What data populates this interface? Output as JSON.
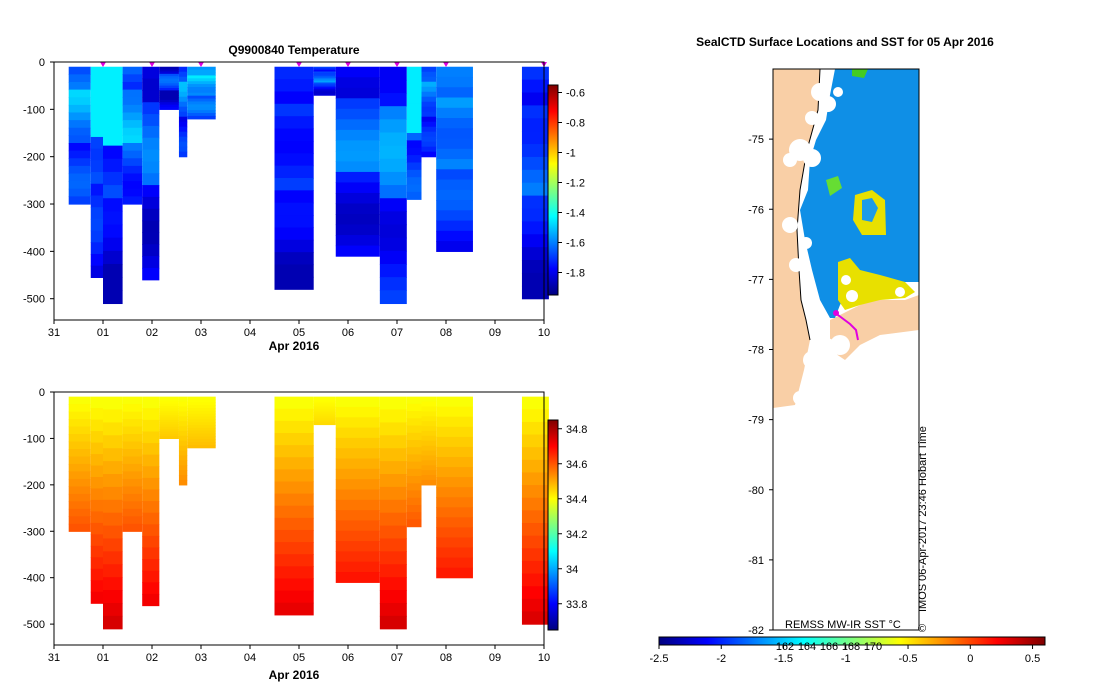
{
  "chart_data": [
    {
      "type": "heatmap",
      "title": "Q9900840  Temperature",
      "xlabel": "Apr 2016",
      "ylabel": "",
      "x_tick_labels": [
        "31",
        "01",
        "02",
        "03",
        "04",
        "05",
        "06",
        "07",
        "08",
        "09",
        "10"
      ],
      "y_tick_labels": [
        "0",
        "-100",
        "-200",
        "-300",
        "-400",
        "-500"
      ],
      "xlim": [
        0,
        10
      ],
      "ylim": [
        -545,
        0
      ],
      "marker_days": [
        1,
        2,
        3,
        5,
        6,
        7,
        8,
        10
      ],
      "colorbar": {
        "range": [
          -1.95,
          -0.55
        ],
        "tick_labels": [
          "-0.6",
          "-0.8",
          "-1",
          "-1.2",
          "-1.4",
          "-1.6",
          "-1.8"
        ],
        "tick_values": [
          -0.6,
          -0.8,
          -1.0,
          -1.2,
          -1.4,
          -1.6,
          -1.8
        ]
      },
      "profiles": [
        {
          "x0": 0.3,
          "x1": 0.75,
          "depth": 300,
          "v": -1.67
        },
        {
          "x0": 0.75,
          "x1": 1.0,
          "depth": 455,
          "v": -1.72
        },
        {
          "x0": 1.0,
          "x1": 1.4,
          "depth": 510,
          "v": -1.8
        },
        {
          "x0": 1.4,
          "x1": 1.8,
          "depth": 300,
          "v": -1.65
        },
        {
          "x0": 1.8,
          "x1": 2.15,
          "depth": 460,
          "v": -1.76
        },
        {
          "x0": 2.15,
          "x1": 2.55,
          "depth": 100,
          "v": -1.8
        },
        {
          "x0": 2.55,
          "x1": 2.72,
          "depth": 200,
          "v": -1.7
        },
        {
          "x0": 2.72,
          "x1": 3.3,
          "depth": 120,
          "v": -1.62
        },
        {
          "x0": 4.5,
          "x1": 5.3,
          "depth": 480,
          "v": -1.8
        },
        {
          "x0": 5.3,
          "x1": 5.75,
          "depth": 70,
          "v": -1.72
        },
        {
          "x0": 5.75,
          "x1": 6.65,
          "depth": 410,
          "v": -1.74
        },
        {
          "x0": 6.65,
          "x1": 7.2,
          "depth": 510,
          "v": -1.71
        },
        {
          "x0": 7.2,
          "x1": 7.5,
          "depth": 290,
          "v": -1.66
        },
        {
          "x0": 7.5,
          "x1": 7.8,
          "depth": 200,
          "v": -1.72
        },
        {
          "x0": 7.8,
          "x1": 8.55,
          "depth": 400,
          "v": -1.68
        },
        {
          "x0": 9.55,
          "x1": 10.1,
          "depth": 500,
          "v": -1.76
        }
      ]
    },
    {
      "type": "heatmap",
      "title": "",
      "xlabel": "Apr 2016",
      "ylabel": "",
      "x_tick_labels": [
        "31",
        "01",
        "02",
        "03",
        "04",
        "05",
        "06",
        "07",
        "08",
        "09",
        "10"
      ],
      "y_tick_labels": [
        "0",
        "-100",
        "-200",
        "-300",
        "-400",
        "-500"
      ],
      "xlim": [
        0,
        10
      ],
      "ylim": [
        -545,
        0
      ],
      "colorbar": {
        "range": [
          33.65,
          34.85
        ],
        "tick_labels": [
          "34.8",
          "34.6",
          "34.4",
          "34.2",
          "34",
          "33.8"
        ],
        "tick_values": [
          34.8,
          34.6,
          34.4,
          34.2,
          34.0,
          33.8
        ]
      },
      "profiles": [
        {
          "x0": 0.3,
          "x1": 0.75,
          "depth": 300
        },
        {
          "x0": 0.75,
          "x1": 1.0,
          "depth": 455
        },
        {
          "x0": 1.0,
          "x1": 1.4,
          "depth": 510
        },
        {
          "x0": 1.4,
          "x1": 1.8,
          "depth": 300
        },
        {
          "x0": 1.8,
          "x1": 2.15,
          "depth": 460
        },
        {
          "x0": 2.15,
          "x1": 2.55,
          "depth": 100
        },
        {
          "x0": 2.55,
          "x1": 2.72,
          "depth": 200
        },
        {
          "x0": 2.72,
          "x1": 3.3,
          "depth": 120
        },
        {
          "x0": 4.5,
          "x1": 5.3,
          "depth": 480
        },
        {
          "x0": 5.3,
          "x1": 5.75,
          "depth": 70
        },
        {
          "x0": 5.75,
          "x1": 6.65,
          "depth": 410
        },
        {
          "x0": 6.65,
          "x1": 7.2,
          "depth": 510
        },
        {
          "x0": 7.2,
          "x1": 7.5,
          "depth": 290
        },
        {
          "x0": 7.5,
          "x1": 7.8,
          "depth": 200
        },
        {
          "x0": 7.8,
          "x1": 8.55,
          "depth": 400
        },
        {
          "x0": 9.55,
          "x1": 10.1,
          "depth": 500
        }
      ]
    },
    {
      "type": "heatmap",
      "title": "SealCTD Surface Locations and SST for 05 Apr 2016",
      "y_tick_labels": [
        "-75",
        "-76",
        "-77",
        "-78",
        "-79",
        "-80",
        "-81",
        "-82"
      ],
      "y_tick_values": [
        -75,
        -76,
        -77,
        -78,
        -79,
        -80,
        -81,
        -82
      ],
      "ylim": [
        -82,
        -74
      ]
    }
  ],
  "map_side_text": "IMOS 06-Apr-2017 23:46 Hobart Time",
  "sst_colorbar": {
    "label": "REMSS MW-IR SST °C",
    "range": [
      -2.5,
      0.6
    ],
    "tick_labels": [
      "-2.5",
      "-2",
      "-1.5",
      "-1",
      "-0.5",
      "0",
      "0.5"
    ],
    "tick_values": [
      -2.5,
      -2.0,
      -1.5,
      -1.0,
      -0.5,
      0.0,
      0.5
    ],
    "lon_labels": [
      "162",
      "164",
      "166",
      "168",
      "170"
    ]
  },
  "colors": {
    "land": "#f9cfa6",
    "ocean_cold": "#0f8fe6",
    "marker": "#e000e0",
    "ice": "#ffffff"
  }
}
